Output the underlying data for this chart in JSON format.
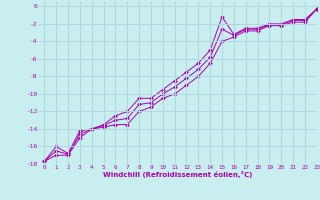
{
  "xlabel": "Windchill (Refroidissement éolien,°C)",
  "ylabel": "",
  "bg_color": "#c8eef0",
  "grid_color": "#b0d8dc",
  "line_color": "#aa00aa",
  "xlim": [
    -0.5,
    23
  ],
  "ylim": [
    -18,
    0.5
  ],
  "xticks": [
    0,
    1,
    2,
    3,
    4,
    5,
    6,
    7,
    8,
    9,
    10,
    11,
    12,
    13,
    14,
    15,
    16,
    17,
    18,
    19,
    20,
    21,
    22,
    23
  ],
  "yticks": [
    0,
    -2,
    -4,
    -6,
    -8,
    -10,
    -12,
    -14,
    -16,
    -18
  ],
  "line1_x": [
    0,
    1,
    2,
    3,
    4,
    5,
    6,
    7,
    8,
    9,
    10,
    11,
    12,
    13,
    14,
    15,
    16,
    17,
    18,
    19,
    20,
    21,
    22,
    23
  ],
  "line1_y": [
    -17.7,
    -16.0,
    -16.8,
    -14.2,
    -14.0,
    -13.5,
    -12.5,
    -12.0,
    -10.5,
    -10.5,
    -9.5,
    -8.5,
    -7.5,
    -6.5,
    -5.0,
    -1.2,
    -3.2,
    -2.5,
    -2.5,
    -2.0,
    -2.0,
    -1.5,
    -1.5,
    -0.3
  ],
  "line2_x": [
    0,
    1,
    2,
    3,
    4,
    5,
    6,
    7,
    8,
    9,
    10,
    11,
    12,
    13,
    14,
    15,
    16,
    17,
    18,
    19,
    20,
    21,
    22,
    23
  ],
  "line2_y": [
    -17.7,
    -17.0,
    -17.0,
    -15.0,
    -14.0,
    -13.8,
    -13.5,
    -13.5,
    -12.0,
    -11.5,
    -10.5,
    -10.0,
    -9.0,
    -8.0,
    -6.5,
    -4.0,
    -3.5,
    -2.8,
    -2.8,
    -2.2,
    -2.2,
    -1.8,
    -1.8,
    -0.3
  ],
  "line3_x": [
    0,
    1,
    2,
    3,
    4,
    5,
    6,
    7,
    8,
    9,
    10,
    11,
    12,
    13,
    14,
    15,
    16,
    17,
    18,
    19,
    20,
    21,
    22,
    23
  ],
  "line3_y": [
    -17.7,
    -16.5,
    -16.9,
    -14.6,
    -14.0,
    -13.6,
    -13.0,
    -12.8,
    -11.2,
    -11.0,
    -10.0,
    -9.2,
    -8.2,
    -7.2,
    -5.8,
    -2.6,
    -3.3,
    -2.6,
    -2.6,
    -2.1,
    -2.1,
    -1.6,
    -1.6,
    -0.3
  ]
}
